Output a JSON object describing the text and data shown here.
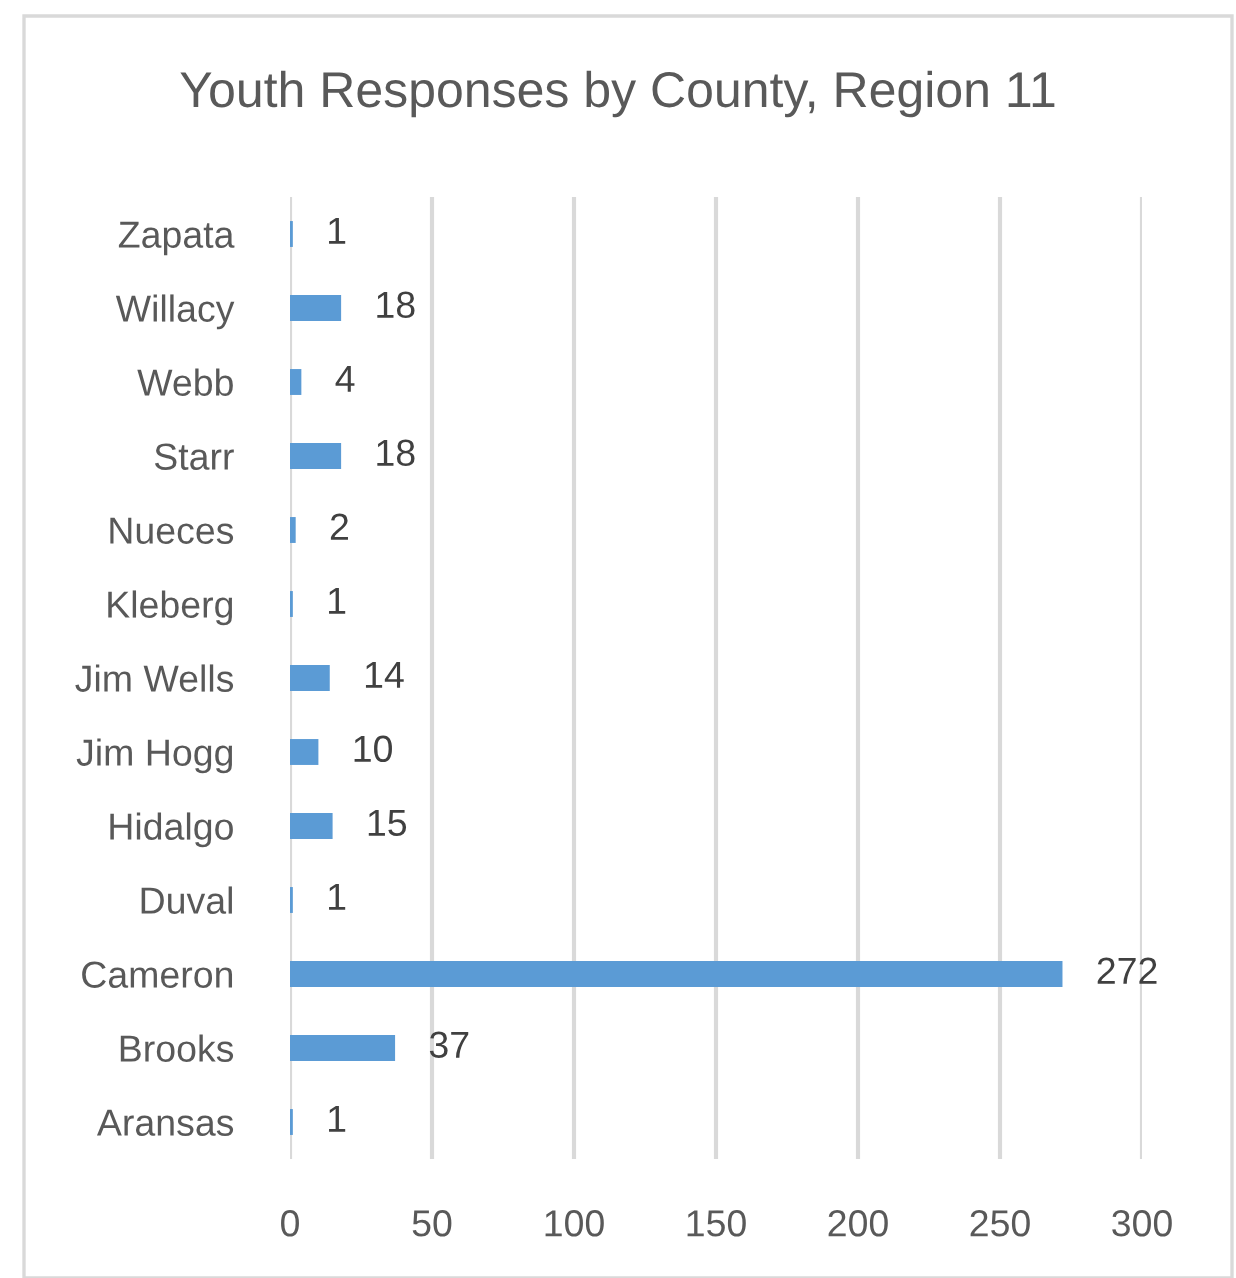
{
  "chart_data": {
    "type": "bar",
    "orientation": "horizontal",
    "title": "Youth Responses by County, Region 11",
    "categories": [
      "Zapata",
      "Willacy",
      "Webb",
      "Starr",
      "Nueces",
      "Kleberg",
      "Jim Wells",
      "Jim Hogg",
      "Hidalgo",
      "Duval",
      "Cameron",
      "Brooks",
      "Aransas"
    ],
    "values": [
      1,
      18,
      4,
      18,
      2,
      1,
      14,
      10,
      15,
      1,
      272,
      37,
      1
    ],
    "color": "#5b9bd5",
    "xlim": [
      0,
      300
    ],
    "xticks": [
      0,
      50,
      100,
      150,
      200,
      250,
      300
    ],
    "grid": "x",
    "data_labels": true,
    "legend": false
  }
}
